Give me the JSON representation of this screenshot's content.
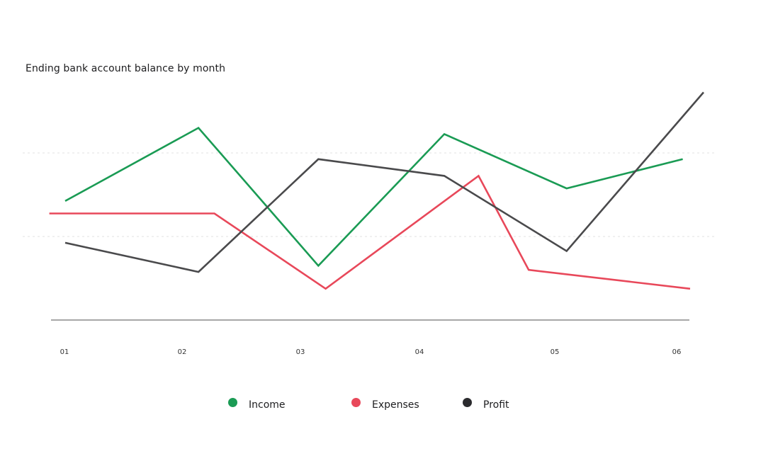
{
  "chart_data": {
    "type": "line",
    "title": "Ending bank account balance by month",
    "xlabel": "",
    "ylabel": "",
    "categories": [
      "01",
      "02",
      "03",
      "04",
      "05",
      "06"
    ],
    "ylim": [
      0,
      100
    ],
    "grid": {
      "horizontal": true,
      "style": "dotted",
      "values": [
        40,
        80
      ]
    },
    "legend_position": "bottom-center",
    "series": [
      {
        "name": "Income",
        "color": "#1a9b54",
        "points": [
          {
            "x": 0.0,
            "y": 57
          },
          {
            "x": 1.09,
            "y": 92
          },
          {
            "x": 2.07,
            "y": 26
          },
          {
            "x": 3.1,
            "y": 89
          },
          {
            "x": 4.1,
            "y": 63
          },
          {
            "x": 5.05,
            "y": 77
          }
        ]
      },
      {
        "name": "Expenses",
        "color": "#e8485a",
        "points": [
          {
            "x": -0.13,
            "y": 51
          },
          {
            "x": 1.22,
            "y": 51
          },
          {
            "x": 2.13,
            "y": 15
          },
          {
            "x": 3.38,
            "y": 69
          },
          {
            "x": 3.79,
            "y": 24
          },
          {
            "x": 5.11,
            "y": 15
          }
        ]
      },
      {
        "name": "Profit",
        "color": "#4a4a4c",
        "points": [
          {
            "x": 0.0,
            "y": 37
          },
          {
            "x": 1.09,
            "y": 23
          },
          {
            "x": 2.07,
            "y": 77
          },
          {
            "x": 3.1,
            "y": 69
          },
          {
            "x": 4.1,
            "y": 33
          },
          {
            "x": 5.22,
            "y": 109
          }
        ]
      }
    ]
  },
  "legend": [
    {
      "label": "Income",
      "color": "#1a9b54"
    },
    {
      "label": "Expenses",
      "color": "#e8485a"
    },
    {
      "label": "Profit",
      "color": "#2b2b2e"
    }
  ],
  "colors": {
    "axis": "#8a8a8a",
    "grid": "#e2e2e2"
  }
}
